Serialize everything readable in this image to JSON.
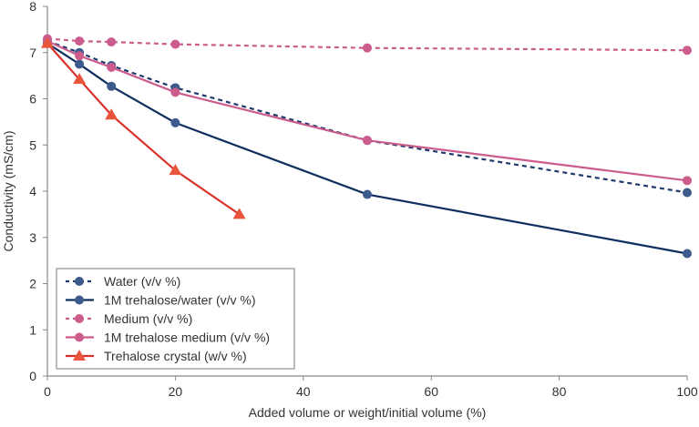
{
  "chart_data": {
    "type": "line",
    "title": "",
    "xlabel": "Added volume or weight/initial volume (%)",
    "ylabel": "Conductivity (mS/cm)",
    "xlim": [
      0,
      100
    ],
    "ylim": [
      0,
      8
    ],
    "xticks": [
      0,
      20,
      40,
      60,
      80,
      100
    ],
    "yticks": [
      0,
      1,
      2,
      3,
      4,
      5,
      6,
      7,
      8
    ],
    "grid": false,
    "legend_position": "bottom-left",
    "series": [
      {
        "name": "Water (v/v %)",
        "color": "#1f3a6b",
        "marker_color": "#3d5a8c",
        "dash": true,
        "marker": "circle",
        "x": [
          0,
          5,
          10,
          20,
          50,
          100
        ],
        "y": [
          7.25,
          7.0,
          6.72,
          6.24,
          5.1,
          3.97
        ]
      },
      {
        "name": "1M trehalose/water (v/v %)",
        "color": "#0f2f5f",
        "marker_color": "#3d5a8c",
        "dash": false,
        "marker": "circle",
        "x": [
          0,
          5,
          10,
          20,
          50,
          100
        ],
        "y": [
          7.2,
          6.75,
          6.27,
          5.48,
          3.93,
          2.65
        ]
      },
      {
        "name": "Medium (v/v %)",
        "color": "#cc5c8c",
        "marker_color": "#cc5c8c",
        "dash": true,
        "marker": "circle",
        "x": [
          0,
          5,
          10,
          20,
          50,
          100
        ],
        "y": [
          7.3,
          7.25,
          7.23,
          7.18,
          7.1,
          7.05
        ]
      },
      {
        "name": "1M trehalose medium (v/v %)",
        "color": "#cc5c8c",
        "marker_color": "#cc5c8c",
        "dash": false,
        "marker": "circle",
        "x": [
          0,
          5,
          10,
          20,
          50,
          100
        ],
        "y": [
          7.25,
          6.93,
          6.68,
          6.14,
          5.1,
          4.23
        ]
      },
      {
        "name": "Trehalose crystal (w/v %)",
        "color": "#d9302a",
        "marker_color": "#e8553c",
        "dash": false,
        "marker": "triangle",
        "x": [
          0,
          5,
          10,
          20,
          30
        ],
        "y": [
          7.2,
          6.42,
          5.65,
          4.45,
          3.5
        ]
      }
    ]
  }
}
